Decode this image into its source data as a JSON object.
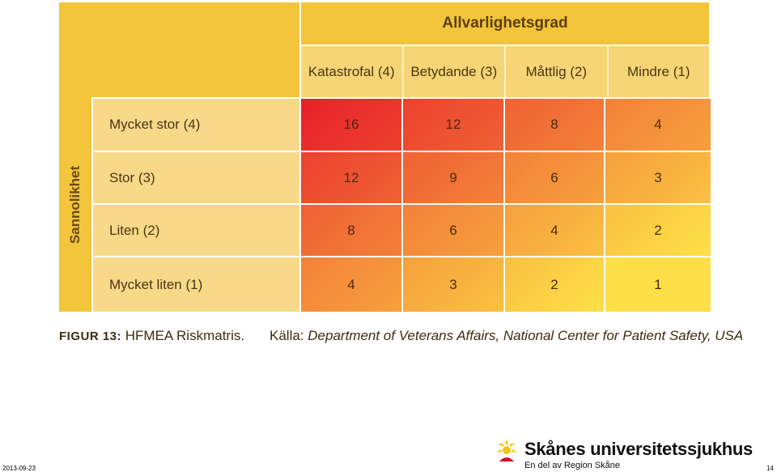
{
  "matrix": {
    "severity_title": "Allvarlighetsgrad",
    "probability_title": "Sannolikhet",
    "severity_levels": [
      "Katastrofal (4)",
      "Betydande (3)",
      "Måttlig (2)",
      "Mindre (1)"
    ],
    "probability_levels": [
      "Mycket stor (4)",
      "Stor (3)",
      "Liten (2)",
      "Mycket liten (1)"
    ],
    "values": [
      [
        16,
        12,
        8,
        4
      ],
      [
        12,
        9,
        6,
        3
      ],
      [
        8,
        6,
        4,
        2
      ],
      [
        4,
        3,
        2,
        1
      ]
    ]
  },
  "caption": {
    "figure_label": "FIGUR 13:",
    "figure_text": "HFMEA Riskmatris.",
    "source_label": "Källa:",
    "source_text": "Department of Veterans Affairs, National Center for Patient Safety, USA"
  },
  "footer": {
    "date": "2013-09-23",
    "page_number": "14",
    "brand_name": "Skånes universitetssjukhus",
    "brand_subtitle": "En del av Region Skåne"
  },
  "colors": {
    "header_band": "#f3c53a",
    "high_risk": "#e8212a",
    "low_risk": "#fde047",
    "logo_yellow": "#f6c40c",
    "logo_red": "#d6002a"
  }
}
